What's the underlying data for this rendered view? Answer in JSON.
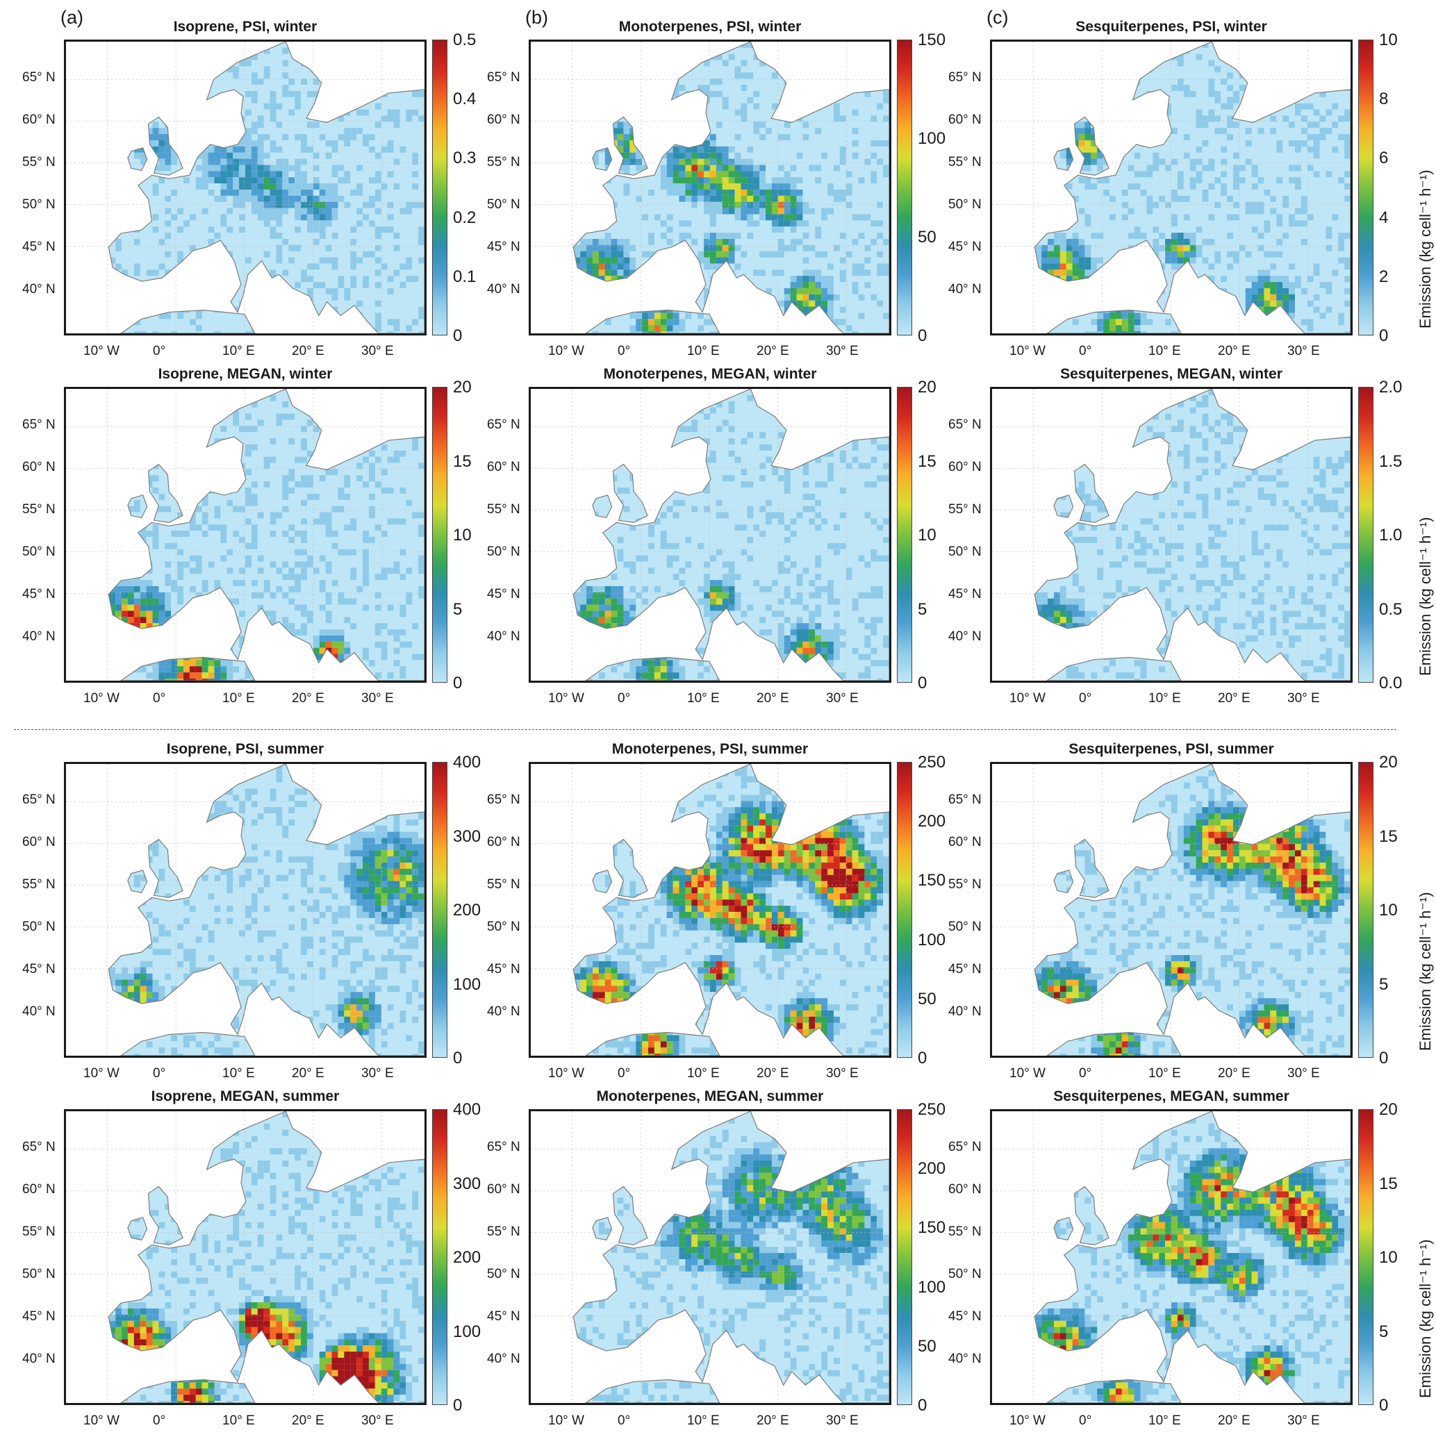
{
  "figure": {
    "column_letters": [
      "(a)",
      "(b)",
      "(c)"
    ],
    "colorbar_label": "Emission (kg cell⁻¹ h⁻¹)",
    "lat_ticks": [
      "65° N",
      "60° N",
      "55° N",
      "50° N",
      "45° N",
      "40° N"
    ],
    "lon_ticks": [
      "10° W",
      "0°",
      "10° E",
      "20° E",
      "30° E"
    ],
    "colormap": [
      "#bfe6f6",
      "#8fcbe9",
      "#4f9fd2",
      "#2f8fb0",
      "#33a65a",
      "#7cc23f",
      "#d8dc33",
      "#f7b02a",
      "#ef6a22",
      "#d42a1f",
      "#a3151a"
    ]
  },
  "panels": [
    {
      "title": "Isoprene, PSI, winter",
      "cbar_ticks": [
        "0.5",
        "0.4",
        "0.3",
        "0.2",
        "0.1",
        "0"
      ]
    },
    {
      "title": "Monoterpenes, PSI, winter",
      "cbar_ticks": [
        "150",
        "100",
        "50",
        "0"
      ]
    },
    {
      "title": "Sesquiterpenes, PSI, winter",
      "cbar_ticks": [
        "10",
        "8",
        "6",
        "4",
        "2",
        "0"
      ]
    },
    {
      "title": "Isoprene, MEGAN, winter",
      "cbar_ticks": [
        "20",
        "15",
        "10",
        "5",
        "0"
      ]
    },
    {
      "title": "Monoterpenes, MEGAN, winter",
      "cbar_ticks": [
        "20",
        "15",
        "10",
        "5",
        "0"
      ]
    },
    {
      "title": "Sesquiterpenes, MEGAN, winter",
      "cbar_ticks": [
        "2.0",
        "1.5",
        "1.0",
        "0.5",
        "0.0"
      ]
    },
    {
      "title": "Isoprene, PSI, summer",
      "cbar_ticks": [
        "400",
        "300",
        "200",
        "100",
        "0"
      ]
    },
    {
      "title": "Monoterpenes, PSI, summer",
      "cbar_ticks": [
        "250",
        "200",
        "150",
        "100",
        "50",
        "0"
      ]
    },
    {
      "title": "Sesquiterpenes, PSI, summer",
      "cbar_ticks": [
        "20",
        "15",
        "10",
        "5",
        "0"
      ]
    },
    {
      "title": "Isoprene, MEGAN, summer",
      "cbar_ticks": [
        "400",
        "300",
        "200",
        "100",
        "0"
      ]
    },
    {
      "title": "Monoterpenes, MEGAN, summer",
      "cbar_ticks": [
        "250",
        "200",
        "150",
        "100",
        "50",
        "0"
      ]
    },
    {
      "title": "Sesquiterpenes, MEGAN, summer",
      "cbar_ticks": [
        "20",
        "15",
        "10",
        "5",
        "0"
      ]
    }
  ]
}
